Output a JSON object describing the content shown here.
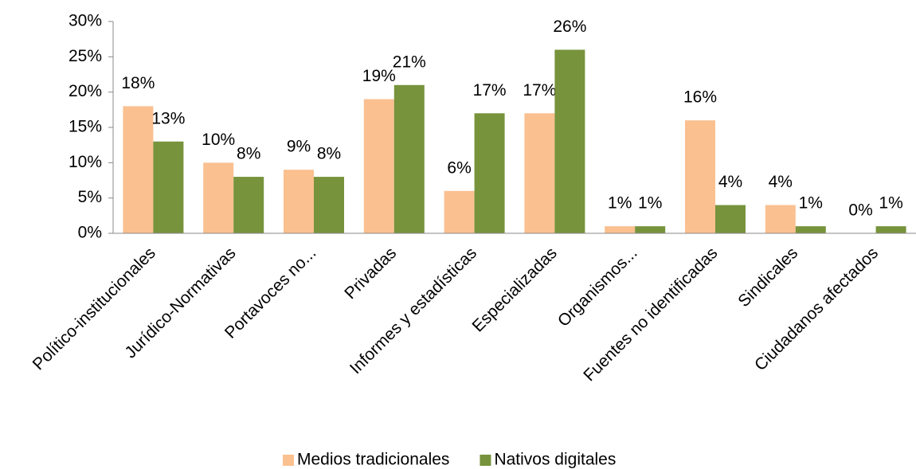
{
  "chart_data": {
    "type": "bar",
    "categories": [
      "Político-institucionales",
      "Jurídico-Normativas",
      "Portavoces no...",
      "Privadas",
      "Informes y estadísticas",
      "Especializadas",
      "Organismos...",
      "Fuentes no identificadas",
      "Sindicales",
      "Ciudadanos afectados"
    ],
    "series": [
      {
        "name": "Medios tradicionales",
        "color": "#fac090",
        "values": [
          18,
          10,
          9,
          19,
          6,
          17,
          1,
          16,
          4,
          0
        ],
        "value_labels": [
          "18%",
          "10%",
          "9%",
          "19%",
          "6%",
          "17%",
          "1%",
          "16%",
          "4%",
          "0%"
        ]
      },
      {
        "name": "Nativos digitales",
        "color": "#77933c",
        "values": [
          13,
          8,
          8,
          21,
          17,
          26,
          1,
          4,
          1,
          1
        ],
        "value_labels": [
          "13%",
          "8%",
          "8%",
          "21%",
          "17%",
          "26%",
          "1%",
          "4%",
          "1%",
          "1%"
        ]
      }
    ],
    "ylim": [
      0,
      30
    ],
    "yticks": [
      {
        "value": 0,
        "label": "0%"
      },
      {
        "value": 5,
        "label": "5%"
      },
      {
        "value": 10,
        "label": "10%"
      },
      {
        "value": 15,
        "label": "15%"
      },
      {
        "value": 20,
        "label": "20%"
      },
      {
        "value": 25,
        "label": "25%"
      },
      {
        "value": 30,
        "label": "30%"
      }
    ],
    "grid": false,
    "legend": "bottom"
  }
}
